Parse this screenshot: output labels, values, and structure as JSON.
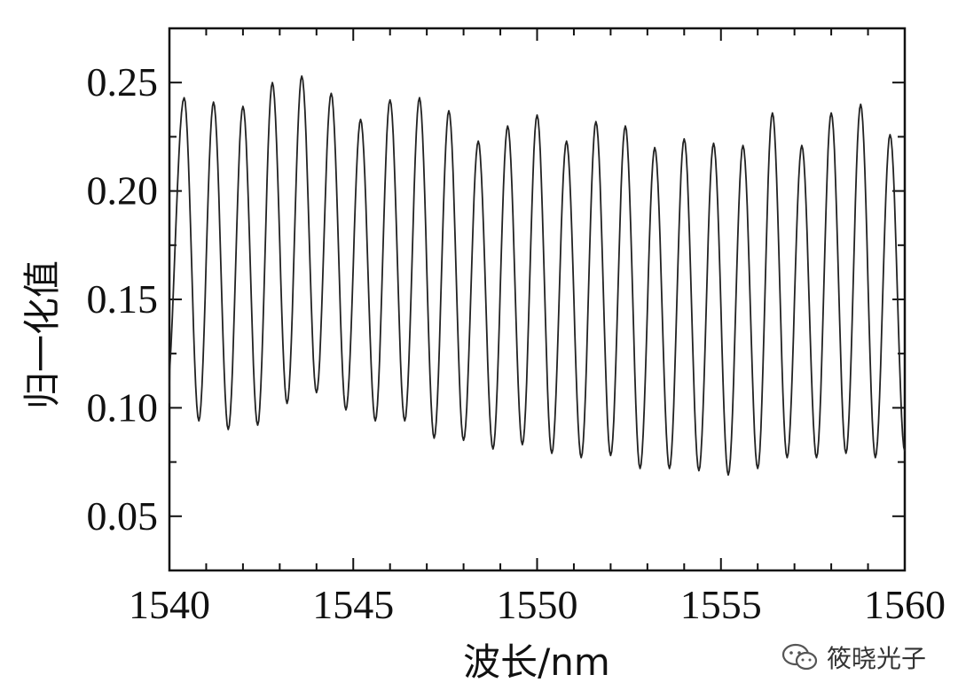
{
  "chart_data": {
    "type": "line",
    "title": "",
    "xlabel": "波长/nm",
    "ylabel": "归一化值",
    "xlim": [
      1540,
      1560
    ],
    "ylim": [
      0.025,
      0.275
    ],
    "xticks": [
      1540,
      1545,
      1550,
      1555,
      1560
    ],
    "xtick_labels": [
      "1540",
      "1545",
      "1550",
      "1555",
      "1560"
    ],
    "yticks": [
      0.05,
      0.1,
      0.15,
      0.2,
      0.25
    ],
    "ytick_labels": [
      "0.05",
      "0.10",
      "0.15",
      "0.20",
      "0.25"
    ],
    "grid": false,
    "line_color": "#222222",
    "series": [
      {
        "peaks": [
          [
            1540.4,
            0.243
          ],
          [
            1541.2,
            0.241
          ],
          [
            1542.0,
            0.239
          ],
          [
            1542.8,
            0.25
          ],
          [
            1543.6,
            0.253
          ],
          [
            1544.4,
            0.245
          ],
          [
            1545.2,
            0.233
          ],
          [
            1546.0,
            0.242
          ],
          [
            1546.8,
            0.243
          ],
          [
            1547.6,
            0.237
          ],
          [
            1548.4,
            0.223
          ],
          [
            1549.2,
            0.23
          ],
          [
            1550.0,
            0.235
          ],
          [
            1550.8,
            0.223
          ],
          [
            1551.6,
            0.232
          ],
          [
            1552.4,
            0.23
          ],
          [
            1553.2,
            0.22
          ],
          [
            1554.0,
            0.224
          ],
          [
            1554.8,
            0.222
          ],
          [
            1555.6,
            0.221
          ],
          [
            1556.4,
            0.236
          ],
          [
            1557.2,
            0.221
          ],
          [
            1558.0,
            0.236
          ],
          [
            1558.8,
            0.24
          ],
          [
            1559.6,
            0.226
          ]
        ],
        "valleys": [
          [
            1539.9,
            0.102
          ],
          [
            1540.8,
            0.094
          ],
          [
            1541.6,
            0.09
          ],
          [
            1542.4,
            0.092
          ],
          [
            1543.2,
            0.102
          ],
          [
            1544.0,
            0.107
          ],
          [
            1544.8,
            0.099
          ],
          [
            1545.6,
            0.094
          ],
          [
            1546.4,
            0.094
          ],
          [
            1547.2,
            0.086
          ],
          [
            1548.0,
            0.085
          ],
          [
            1548.8,
            0.081
          ],
          [
            1549.6,
            0.083
          ],
          [
            1550.4,
            0.079
          ],
          [
            1551.2,
            0.077
          ],
          [
            1552.0,
            0.078
          ],
          [
            1552.8,
            0.072
          ],
          [
            1553.6,
            0.072
          ],
          [
            1554.4,
            0.071
          ],
          [
            1555.2,
            0.069
          ],
          [
            1556.0,
            0.072
          ],
          [
            1556.8,
            0.077
          ],
          [
            1557.6,
            0.077
          ],
          [
            1558.4,
            0.079
          ],
          [
            1559.2,
            0.077
          ],
          [
            1560.0,
            0.08
          ]
        ]
      }
    ]
  },
  "watermark": {
    "text": "筱晓光子"
  }
}
